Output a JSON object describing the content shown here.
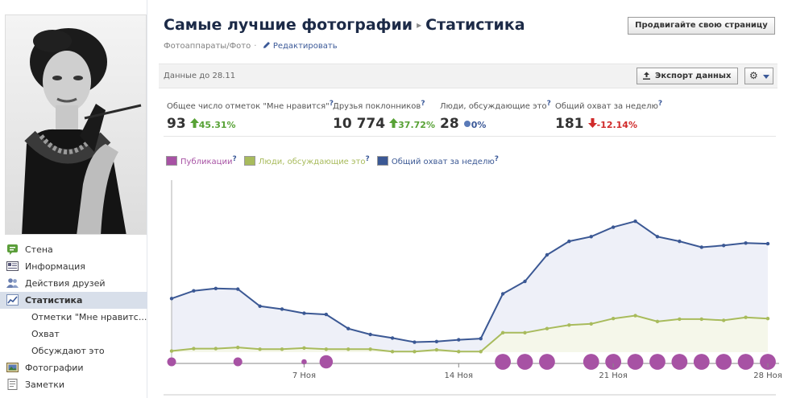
{
  "page": {
    "title": "Самые лучшие фотографии",
    "section": "Статистика",
    "category": "Фотоаппараты/Фото",
    "edit_label": "Редактировать",
    "promote_label": "Продвигайте свою страницу"
  },
  "nav": {
    "items": [
      {
        "label": "Стена",
        "icon": "wall-icon"
      },
      {
        "label": "Информация",
        "icon": "info-icon"
      },
      {
        "label": "Действия друзей",
        "icon": "friends-icon"
      },
      {
        "label": "Статистика",
        "icon": "insights-icon",
        "active": true
      },
      {
        "label": "Отметки \"Мне нравитс...",
        "sub": true
      },
      {
        "label": "Охват",
        "sub": true
      },
      {
        "label": "Обсуждают это",
        "sub": true
      },
      {
        "label": "Фотографии",
        "icon": "photos-icon"
      },
      {
        "label": "Заметки",
        "icon": "notes-icon"
      }
    ]
  },
  "toolbar": {
    "data_date": "Данные до 28.11",
    "export_label": "Экспорт данных"
  },
  "stats": [
    {
      "label": "Общее число отметок \"Мне нравится\"",
      "value": "93",
      "change": "45.31%",
      "direction": "up"
    },
    {
      "label": "Друзья поклонников",
      "value": "10 774",
      "change": "37.72%",
      "direction": "up"
    },
    {
      "label": "Люди, обсуждающие это",
      "value": "28",
      "change": "0%",
      "direction": "flat"
    },
    {
      "label": "Общий охват за неделю",
      "value": "181",
      "change": "-12.14%",
      "direction": "down"
    }
  ],
  "help_mark": "?",
  "colors": {
    "posts": "#a752a4",
    "talking": "#a8bb5c",
    "reach": "#3b5894",
    "reach_fill": "#eef0f8",
    "talking_fill": "#f5f7ea",
    "link": "#3b5998"
  },
  "chart_data": {
    "type": "line",
    "legend": [
      {
        "label": "Публикации",
        "key": "posts"
      },
      {
        "label": "Люди, обсуждающие это",
        "key": "talking"
      },
      {
        "label": "Общий охват за неделю",
        "key": "reach"
      }
    ],
    "x_ticks": [
      {
        "label": "7 Ноя",
        "index": 6
      },
      {
        "label": "14 Ноя",
        "index": 13
      },
      {
        "label": "21 Ноя",
        "index": 20
      },
      {
        "label": "28 Ноя",
        "index": 27
      }
    ],
    "ylim": [
      0,
      240
    ],
    "series": {
      "reach": [
        91,
        104,
        108,
        107,
        78,
        73,
        66,
        64,
        40,
        30,
        24,
        17,
        18,
        21,
        23,
        99,
        120,
        165,
        188,
        196,
        212,
        222,
        196,
        188,
        178,
        181,
        185,
        184
      ],
      "talking": [
        2,
        6,
        6,
        8,
        5,
        5,
        7,
        5,
        5,
        5,
        1,
        1,
        4,
        1,
        1,
        33,
        33,
        40,
        46,
        48,
        57,
        62,
        52,
        56,
        56,
        54,
        59,
        57
      ],
      "posts_bubble_size": [
        1,
        0,
        0,
        1,
        0,
        0,
        0.6,
        1.5,
        0,
        0,
        0,
        0,
        0,
        0,
        0,
        1.8,
        1.8,
        1.8,
        0,
        1.8,
        1.8,
        1.8,
        1.8,
        1.8,
        1.8,
        1.8,
        1.8,
        1.8
      ]
    }
  }
}
